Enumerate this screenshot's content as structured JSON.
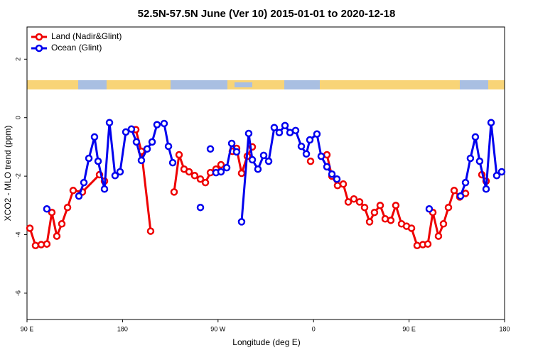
{
  "chart_data": {
    "type": "line",
    "title": "52.5N-57.5N June (Ver 10)   2015-01-01 to 2020-12-18",
    "x_label": "Longitude (deg E)",
    "y_label": "XCO2 - MLO trend (ppm)",
    "xlim": [
      90,
      540
    ],
    "ylim": [
      -6.9,
      3.1
    ],
    "xticks": [
      {
        "value": 90,
        "label": "90 E"
      },
      180,
      {
        "value": 270,
        "label": "90 W"
      },
      {
        "value": 360,
        "label": "0"
      },
      {
        "value": 450,
        "label": "90 E"
      },
      {
        "value": 540,
        "label": "180"
      }
    ],
    "yticks": [
      -6,
      -4,
      -2,
      0,
      2
    ],
    "legend": "top-left",
    "series": [
      {
        "name": "Land (Nadir&Glint)",
        "color": "#ee0000",
        "x": [
          92.7,
          98.0,
          103.4,
          108.7,
          113.4,
          118.1,
          122.8,
          128.2,
          133.5,
          142.2,
          158.3,
          163.0,
          null,
          192.5,
          197.8,
          206.5,
          null,
          228.6,
          233.3,
          238.0,
          242.7,
          248.0,
          253.4,
          258.1,
          262.8,
          268.1,
          272.8,
          null,
          283.5,
          287.5,
          292.2,
          297.6,
          302.3,
          null,
          357.2,
          null,
          372.6,
          377.3,
          382.6,
          388.0,
          392.7,
          398.0,
          403.4,
          408.1,
          412.8,
          417.4,
          422.8,
          427.5,
          432.8,
          437.5,
          442.9,
          447.6,
          452.3,
          457.6,
          463.0,
          467.7,
          472.4,
          477.7,
          482.4,
          487.1,
          492.5,
          497.8,
          503.2,
          null,
          518.6,
          522.6
        ],
        "values": [
          -3.78,
          -4.37,
          -4.34,
          -4.32,
          -3.24,
          -4.05,
          -3.63,
          -3.07,
          -2.49,
          -2.54,
          -1.95,
          -2.17,
          null,
          -0.41,
          -1.15,
          -3.88,
          null,
          -2.54,
          -1.27,
          -1.76,
          -1.85,
          -1.98,
          -2.1,
          -2.22,
          -1.88,
          -1.76,
          -1.61,
          null,
          -1.15,
          -1.05,
          -1.9,
          -1.32,
          -1.0,
          null,
          -1.49,
          null,
          -1.27,
          -2.0,
          -2.32,
          -2.27,
          -2.88,
          -2.78,
          -2.88,
          -3.07,
          -3.56,
          -3.24,
          -3.0,
          -3.46,
          -3.51,
          -3.0,
          -3.63,
          -3.71,
          -3.78,
          -4.37,
          -4.34,
          -4.32,
          -3.24,
          -4.05,
          -3.63,
          -3.07,
          -2.49,
          -2.71,
          -2.59,
          null,
          -1.95,
          -2.17
        ]
      },
      {
        "name": "Ocean (Glint)",
        "color": "#0000ee",
        "x": [
          108.7,
          null,
          138.9,
          143.6,
          148.3,
          153.6,
          157.0,
          163.0,
          167.7,
          173.0,
          177.7,
          183.1,
          188.4,
          193.1,
          197.8,
          203.2,
          207.9,
          212.5,
          219.2,
          223.3,
          227.3,
          null,
          253.4,
          null,
          262.8,
          null,
          268.1,
          272.8,
          278.2,
          282.9,
          287.5,
          null,
          292.2,
          298.9,
          302.3,
          307.6,
          313.0,
          317.7,
          323.0,
          327.7,
          333.1,
          337.8,
          343.1,
          348.5,
          353.2,
          356.5,
          363.2,
          367.2,
          372.6,
          377.3,
          382.0,
          null,
          469.0,
          null,
          498.5,
          503.2,
          507.8,
          512.5,
          516.5,
          522.6,
          527.3,
          532.6,
          537.3
        ],
        "values": [
          -3.12,
          null,
          -2.68,
          -2.22,
          -1.39,
          -0.66,
          -1.49,
          -2.44,
          -0.17,
          -1.98,
          -1.85,
          -0.49,
          -0.39,
          -0.83,
          -1.46,
          -1.07,
          -0.83,
          -0.24,
          -0.2,
          -0.98,
          -1.54,
          null,
          -3.07,
          null,
          -1.07,
          null,
          -1.88,
          -1.85,
          -1.71,
          -0.88,
          -1.17,
          null,
          -3.56,
          -0.54,
          -1.44,
          -1.76,
          -1.29,
          -1.49,
          -0.34,
          -0.51,
          -0.27,
          -0.51,
          -0.44,
          -0.98,
          -1.24,
          -0.76,
          -0.56,
          -1.32,
          -1.68,
          -1.93,
          -2.1,
          null,
          -3.12,
          null,
          -2.68,
          -2.22,
          -1.39,
          -0.66,
          -1.49,
          -2.44,
          -0.17,
          -1.98,
          -1.85
        ]
      }
    ]
  }
}
